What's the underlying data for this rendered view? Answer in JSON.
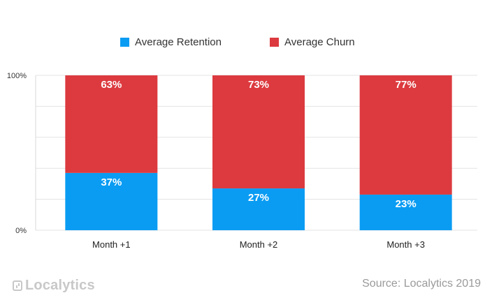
{
  "chart_data": {
    "type": "bar",
    "stacked": true,
    "categories": [
      "Month +1",
      "Month +2",
      "Month +3"
    ],
    "series": [
      {
        "name": "Average Retention",
        "values": [
          37,
          27,
          23
        ],
        "labels": [
          "37%",
          "27%",
          "23%"
        ],
        "color": "#0a9cf3"
      },
      {
        "name": "Average Churn",
        "values": [
          63,
          73,
          77
        ],
        "labels": [
          "63%",
          "73%",
          "77%"
        ],
        "color": "#dc3a3f"
      }
    ],
    "ylim": [
      0,
      100
    ],
    "yticks": [
      "0%",
      "100%"
    ],
    "grid": true,
    "legend": "top-center"
  },
  "legend": {
    "retention_label": "Average Retention",
    "churn_label": "Average Churn"
  },
  "footer": {
    "logo_text": "Localytics",
    "source": "Source: Localytics 2019"
  }
}
